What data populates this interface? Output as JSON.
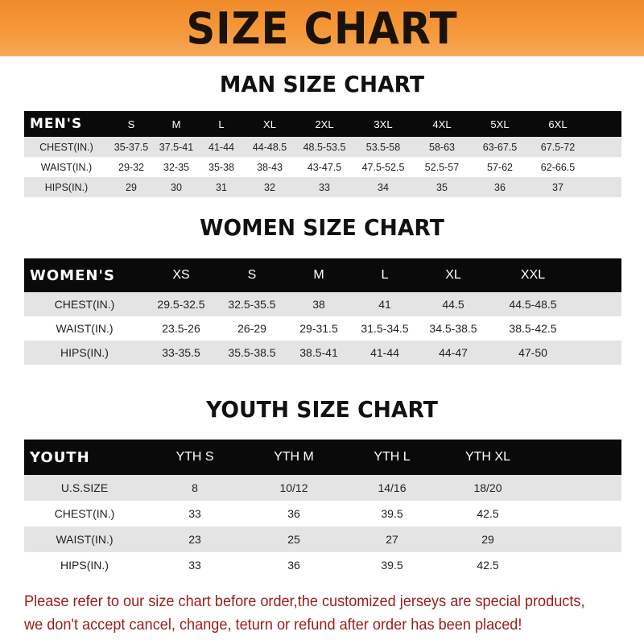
{
  "title": "SIZE CHART",
  "men": {
    "heading": "MAN SIZE CHART",
    "header": [
      "MEN'S",
      "S",
      "M",
      "L",
      "XL",
      "2XL",
      "3XL",
      "4XL",
      "5XL",
      "6XL"
    ],
    "rows": [
      [
        "CHEST(IN.)",
        "35-37.5",
        "37.5-41",
        "41-44",
        "44-48.5",
        "48.5-53.5",
        "53.5-58",
        "58-63",
        "63-67.5",
        "67.5-72"
      ],
      [
        "WAIST(IN.)",
        "29-32",
        "32-35",
        "35-38",
        "38-43",
        "43-47.5",
        "47.5-52.5",
        "52.5-57",
        "57-62",
        "62-66.5"
      ],
      [
        "HIPS(IN.)",
        "29",
        "30",
        "31",
        "32",
        "33",
        "34",
        "35",
        "36",
        "37"
      ]
    ]
  },
  "women": {
    "heading": "WOMEN SIZE CHART",
    "header": [
      "WOMEN'S",
      "XS",
      "S",
      "M",
      "L",
      "XL",
      "XXL"
    ],
    "rows": [
      [
        "CHEST(IN.)",
        "29.5-32.5",
        "32.5-35.5",
        "38",
        "41",
        "44.5",
        "44.5-48.5"
      ],
      [
        "WAIST(IN.)",
        "23.5-26",
        "26-29",
        "29-31.5",
        "31.5-34.5",
        "34.5-38.5",
        "38.5-42.5"
      ],
      [
        "HIPS(IN.)",
        "33-35.5",
        "35.5-38.5",
        "38.5-41",
        "41-44",
        "44-47",
        "47-50"
      ]
    ]
  },
  "youth": {
    "heading": "YOUTH SIZE CHART",
    "header": [
      "YOUTH",
      "YTH S",
      "YTH M",
      "YTH L",
      "YTH XL"
    ],
    "rows": [
      [
        "U.S.SIZE",
        "8",
        "10/12",
        "14/16",
        "18/20"
      ],
      [
        "CHEST(IN.)",
        "33",
        "36",
        "39.5",
        "42.5"
      ],
      [
        "WAIST(IN.)",
        "23",
        "25",
        "27",
        "29"
      ],
      [
        "HIPS(IN.)",
        "33",
        "36",
        "39.5",
        "42.5"
      ]
    ]
  },
  "note": "Please refer to our size chart before order,the customized jerseys are special products, we don't accept cancel, change, teturn or refund after order has been placed!",
  "colors": {
    "banner": "#f5963a",
    "note": "#9b1b1b",
    "header_row": "#0a0a0a",
    "stripe": "#e4e4e4"
  }
}
